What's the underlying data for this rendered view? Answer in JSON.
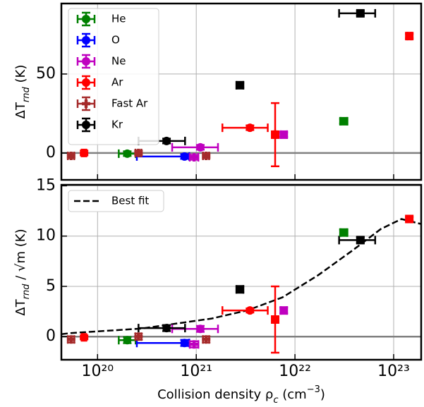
{
  "chart_data": [
    {
      "type": "scatter",
      "ylabel": [
        "ΔT",
        "rnd",
        " (K)"
      ],
      "xscale": "log",
      "xlim": [
        4.3e+19,
        1.9e+23
      ],
      "xticks": [
        1e+20,
        1e+21,
        1e+22,
        1e+23
      ],
      "ylim": [
        -17,
        94.6
      ],
      "yticks": [
        0,
        50
      ],
      "grid": true,
      "hline": 0,
      "legend": "upper left",
      "series": [
        {
          "name": "He",
          "color": "#008000",
          "legend_marker": "o",
          "x": [
            2e+20,
            3.1e+22
          ],
          "y": [
            -0.4,
            20.1
          ],
          "xmin": [
            1.64e+20,
            2.9e+22
          ],
          "xmax": [
            2.43e+20,
            3.4e+22
          ],
          "yerr": [
            1.5,
            1.5
          ],
          "markers": [
            "o",
            "s"
          ]
        },
        {
          "name": "O",
          "color": "#0000ff",
          "legend_marker": "o",
          "x": [
            7.6e+20
          ],
          "y": [
            -2.2
          ],
          "xmin": [
            2.5e+20
          ],
          "xmax": [
            8.5e+20
          ],
          "yerr": [
            1.5
          ],
          "markers": [
            "o"
          ]
        },
        {
          "name": "Ne",
          "color": "#bf00bf",
          "legend_marker": "o",
          "x": [
            1.1e+21,
            9.5e+20,
            7.7e+21
          ],
          "y": [
            3.6,
            -2.7,
            11.6
          ],
          "xmin": [
            5.7e+20,
            8.6e+20,
            7.2e+21
          ],
          "xmax": [
            1.66e+21,
            1.05e+21,
            8.3e+21
          ],
          "yerr": [
            1.5,
            1.5,
            1.5
          ],
          "markers": [
            "o",
            "P",
            "s"
          ]
        },
        {
          "name": "Ar",
          "color": "#ff0000",
          "legend_marker": "o",
          "x": [
            7.3e+19,
            3.5e+21,
            6.3e+21,
            1.44e+23
          ],
          "y": [
            0,
            16,
            11.6,
            74
          ],
          "xmin": [
            6.9e+19,
            1.84e+21,
            6.1e+21,
            1.38e+23
          ],
          "xmax": [
            7.7e+19,
            5.3e+21,
            6.5e+21,
            1.5e+23
          ],
          "yerr": [
            1.5,
            1.5,
            20,
            1.5
          ],
          "markers": [
            "P",
            "o",
            "s",
            "s"
          ]
        },
        {
          "name": "Fast Ar",
          "color": "#a52a2a",
          "legend_marker": "P",
          "x": [
            5.4e+19,
            2.6e+20,
            1.26e+21
          ],
          "y": [
            -1.8,
            0,
            -1.8
          ],
          "xmin": [
            5e+19,
            2.42e+20,
            1.17e+21
          ],
          "xmax": [
            5.8e+19,
            2.78e+20,
            1.35e+21
          ],
          "yerr": [
            1.5,
            1.5,
            1.5
          ],
          "markers": [
            "P",
            "P",
            "P"
          ]
        },
        {
          "name": "Kr",
          "color": "#000000",
          "legend_marker": "o",
          "x": [
            5e+20,
            2.77e+21,
            4.6e+22
          ],
          "y": [
            7.6,
            42.9,
            88.4
          ],
          "xmin": [
            2.6e+20,
            2.55e+21,
            2.8e+22
          ],
          "xmax": [
            7.7e+20,
            3e+21,
            6.5e+22
          ],
          "yerr": [
            1.5,
            1.5,
            1.5
          ],
          "markers": [
            "o",
            "s",
            "s"
          ]
        }
      ]
    },
    {
      "type": "scatter",
      "ylabel": [
        "ΔT",
        "rnd",
        " / √m (K)"
      ],
      "xlabel": [
        "Collision density ρ",
        "c",
        " (cm",
        "−3",
        ")"
      ],
      "xscale": "log",
      "xlim": [
        4.3e+19,
        1.9e+23
      ],
      "xticks": [
        {
          "value": 1e+20,
          "label": "10²⁰"
        },
        {
          "value": 1e+21,
          "label": "10²¹"
        },
        {
          "value": 1e+22,
          "label": "10²²"
        },
        {
          "value": 1e+23,
          "label": "10²³"
        }
      ],
      "ylim": [
        -2.3,
        15.1
      ],
      "yticks": [
        0,
        5,
        10,
        15
      ],
      "grid": true,
      "hline": 0,
      "legend": "upper left",
      "fit": {
        "name": "Best fit",
        "color": "#000000",
        "style": "dashed",
        "x": [
          4.3e+19,
          5.35e+19,
          2.77e+20,
          1.43e+21,
          3.26e+21,
          7.46e+21,
          1.71e+22,
          3.87e+22,
          7.4e+22,
          1.2e+23,
          1.9e+23
        ],
        "y": [
          0.25,
          0.35,
          0.8,
          1.8,
          2.6,
          3.9,
          6.1,
          8.6,
          10.7,
          11.7,
          11.2
        ]
      },
      "series": [
        {
          "color": "#008000",
          "x": [
            2e+20,
            3.1e+22
          ],
          "y": [
            -0.35,
            10.35
          ],
          "xmin": [
            1.64e+20,
            2.9e+22
          ],
          "xmax": [
            2.43e+20,
            3.4e+22
          ],
          "yerr": [
            0.3,
            0.3
          ],
          "markers": [
            "o",
            "s"
          ]
        },
        {
          "color": "#0000ff",
          "x": [
            7.6e+20
          ],
          "y": [
            -0.63
          ],
          "xmin": [
            2.5e+20
          ],
          "xmax": [
            8.5e+20
          ],
          "yerr": [
            0.3
          ],
          "markers": [
            "o"
          ]
        },
        {
          "color": "#bf00bf",
          "x": [
            1.1e+21,
            9.5e+20,
            7.7e+21
          ],
          "y": [
            0.77,
            -0.77,
            2.6
          ],
          "xmin": [
            5.7e+20,
            8.6e+20,
            7.2e+21
          ],
          "xmax": [
            1.66e+21,
            1.05e+21,
            8.3e+21
          ],
          "yerr": [
            0.3,
            0.3,
            0.3
          ],
          "markers": [
            "o",
            "P",
            "s"
          ]
        },
        {
          "color": "#ff0000",
          "x": [
            7.3e+19,
            3.5e+21,
            6.3e+21,
            1.44e+23
          ],
          "y": [
            -0.07,
            2.6,
            1.7,
            11.7
          ],
          "xmin": [
            6.9e+19,
            1.84e+21,
            6.1e+21,
            1.38e+23
          ],
          "xmax": [
            7.7e+19,
            5.3e+21,
            6.5e+21,
            1.5e+23
          ],
          "yerr": [
            0.2,
            0.2,
            3.3,
            0.2
          ],
          "markers": [
            "P",
            "o",
            "s",
            "s"
          ]
        },
        {
          "color": "#a52a2a",
          "x": [
            5.4e+19,
            2.6e+20,
            1.26e+21
          ],
          "y": [
            -0.28,
            0,
            -0.28
          ],
          "xmin": [
            5e+19,
            2.42e+20,
            1.17e+21
          ],
          "xmax": [
            5.8e+19,
            2.78e+20,
            1.35e+21
          ],
          "yerr": [
            0.3,
            0.3,
            0.3
          ],
          "markers": [
            "P",
            "P",
            "P"
          ]
        },
        {
          "color": "#000000",
          "x": [
            5e+20,
            2.77e+21,
            4.6e+22
          ],
          "y": [
            0.85,
            4.7,
            9.6
          ],
          "xmin": [
            2.6e+20,
            2.55e+21,
            2.8e+22
          ],
          "xmax": [
            7.7e+20,
            3e+21,
            6.5e+22
          ],
          "yerr": [
            0.3,
            0.3,
            0.3
          ],
          "markers": [
            "o",
            "s",
            "s"
          ]
        }
      ]
    }
  ]
}
